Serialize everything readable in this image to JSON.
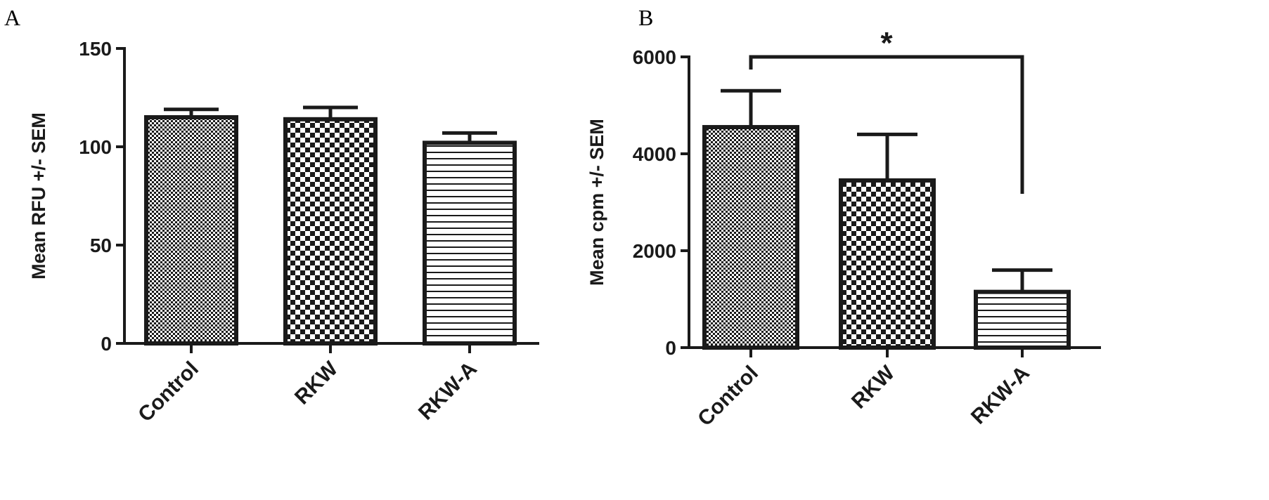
{
  "figure": {
    "panels": [
      "A",
      "B"
    ]
  },
  "chart_data": [
    {
      "type": "bar",
      "panel": "A",
      "categories": [
        "Control",
        "RKW",
        "RKW-A"
      ],
      "values": [
        115,
        114,
        102
      ],
      "error": [
        4,
        6,
        5
      ],
      "ylabel": "Mean RFU +/- SEM",
      "xlabel": "",
      "ylim": [
        0,
        150
      ],
      "yticks": [
        0,
        50,
        100,
        150
      ],
      "patterns": [
        "fine-checker",
        "coarse-checker",
        "horizontal-lines"
      ],
      "grid": false
    },
    {
      "type": "bar",
      "panel": "B",
      "categories": [
        "Control",
        "RKW",
        "RKW-A"
      ],
      "values": [
        4550,
        3450,
        1150
      ],
      "error": [
        750,
        950,
        450
      ],
      "ylabel": "Mean cpm +/- SEM",
      "xlabel": "",
      "ylim": [
        0,
        6000
      ],
      "yticks": [
        0,
        2000,
        4000,
        6000
      ],
      "patterns": [
        "fine-checker",
        "coarse-checker",
        "horizontal-lines"
      ],
      "grid": false,
      "significance": {
        "from": "Control",
        "to": "RKW-A",
        "label": "*"
      }
    }
  ]
}
